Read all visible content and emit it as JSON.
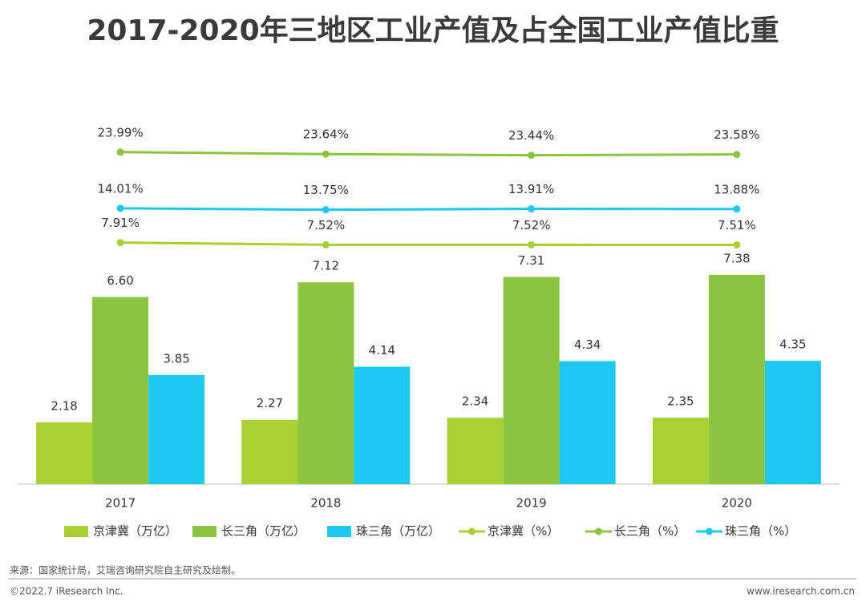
{
  "chart_data": {
    "type": "bar",
    "title": "2017-2020年三地区工业产值及占全国工业产值比重",
    "categories": [
      "2017",
      "2018",
      "2019",
      "2020"
    ],
    "series": [
      {
        "name": "京津冀（万亿）",
        "color": "#a8d032",
        "values": [
          2.18,
          2.27,
          2.34,
          2.35
        ],
        "value_labels": [
          "2.18",
          "2.27",
          "2.34",
          "2.35"
        ]
      },
      {
        "name": "长三角（万亿）",
        "color": "#8bc540",
        "values": [
          6.6,
          7.12,
          7.31,
          7.38
        ],
        "value_labels": [
          "6.60",
          "7.12",
          "7.31",
          "7.38"
        ]
      },
      {
        "name": "珠三角（万亿）",
        "color": "#1fc8f0",
        "values": [
          3.85,
          4.14,
          4.34,
          4.35
        ],
        "value_labels": [
          "3.85",
          "4.14",
          "4.34",
          "4.35"
        ]
      },
      {
        "name": "京津冀（%）",
        "type": "line",
        "axis": "y2",
        "color": "#a8d032",
        "values": [
          7.91,
          7.52,
          7.52,
          7.51
        ],
        "value_labels": [
          "7.91%",
          "7.52%",
          "7.52%",
          "7.51%"
        ]
      },
      {
        "name": "长三角（%）",
        "type": "line",
        "axis": "y2",
        "color": "#8bc540",
        "values": [
          23.99,
          23.64,
          23.44,
          23.58
        ],
        "value_labels": [
          "23.99%",
          "23.64%",
          "23.44%",
          "23.58%"
        ]
      },
      {
        "name": "珠三角（%）",
        "type": "line",
        "axis": "y2",
        "color": "#1fc8f0",
        "values": [
          14.01,
          13.75,
          13.91,
          13.88
        ],
        "value_labels": [
          "14.01%",
          "13.75%",
          "13.91%",
          "13.88%"
        ]
      }
    ],
    "ylim": [
      0,
      13.4
    ],
    "y2lim": [
      -35,
      32.5
    ],
    "grid": false,
    "legend": "bottom",
    "source": "来源：国家统计局，艾瑞咨询研究院自主研究及绘制。",
    "footer_left": "©2022.7 iResearch Inc.",
    "footer_right": "www.iresearch.com.cn"
  }
}
